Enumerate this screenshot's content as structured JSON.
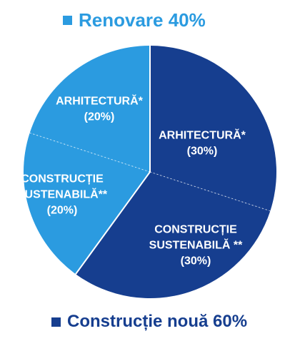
{
  "chart_data": {
    "type": "pie",
    "groups": [
      {
        "name": "Renovare 40%",
        "label": "Renovare",
        "value": 40,
        "color": "#2b9be0"
      },
      {
        "name": "Construcție nouă 60%",
        "label": "Construcție nouă",
        "value": 60,
        "color": "#163e8f"
      }
    ],
    "slices": [
      {
        "name": "ARHITECTURĂ*",
        "lines": [
          "ARHITECTURĂ*",
          "(30%)"
        ],
        "value": 30,
        "group": "Construcție nouă 60%",
        "color": "#163e8f"
      },
      {
        "name": "CONSTRUCȚIE SUSTENABILĂ **",
        "lines": [
          "CONSTRUCȚIE",
          "SUSTENABILĂ **",
          "(30%)"
        ],
        "value": 30,
        "group": "Construcție nouă 60%",
        "color": "#163e8f"
      },
      {
        "name": "CONSTRUCȚIE SUSTENABILĂ**",
        "lines": [
          "CONSTRUCȚIE",
          "SUSTENABILĂ**",
          "(20%)"
        ],
        "value": 20,
        "group": "Renovare 40%",
        "color": "#2b9be0"
      },
      {
        "name": "ARHITECTURĂ*",
        "lines": [
          "ARHITECTURĂ*",
          "(20%)"
        ],
        "value": 20,
        "group": "Renovare 40%",
        "color": "#2b9be0"
      }
    ],
    "start_angle_deg": 0,
    "direction": "clockwise",
    "legend_placement": "top and bottom"
  },
  "legend": {
    "top": {
      "text": "Renovare 40%",
      "color": "#2b9be0"
    },
    "bottom": {
      "text": "Construcție nouă 60%",
      "color": "#163e8f"
    }
  }
}
